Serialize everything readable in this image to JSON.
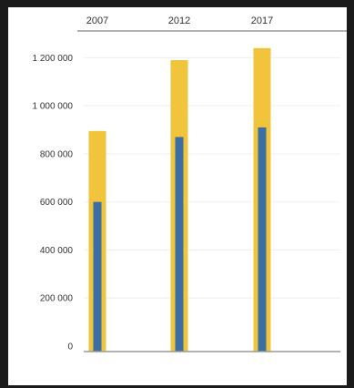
{
  "chart_data": {
    "type": "bar",
    "stacked": false,
    "overlapping_bars": true,
    "categories": [
      "2007",
      "2012",
      "2017"
    ],
    "series": [
      {
        "values": [
          895000,
          1190000,
          1240000
        ],
        "color": "#f0c53c"
      },
      {
        "values": [
          600000,
          870000,
          910000
        ],
        "color": "#3a6ea5"
      }
    ],
    "ylim": [
      0,
      1300000
    ],
    "y_ticks": [
      "0",
      "200 000",
      "400 000",
      "600 000",
      "800 000",
      "1 000 000",
      "1 200 000"
    ],
    "y_tick_values": [
      0,
      200000,
      400000,
      600000,
      800000,
      1000000,
      1200000
    ],
    "x_axis_position": "top",
    "grid": true,
    "legend": "none"
  }
}
